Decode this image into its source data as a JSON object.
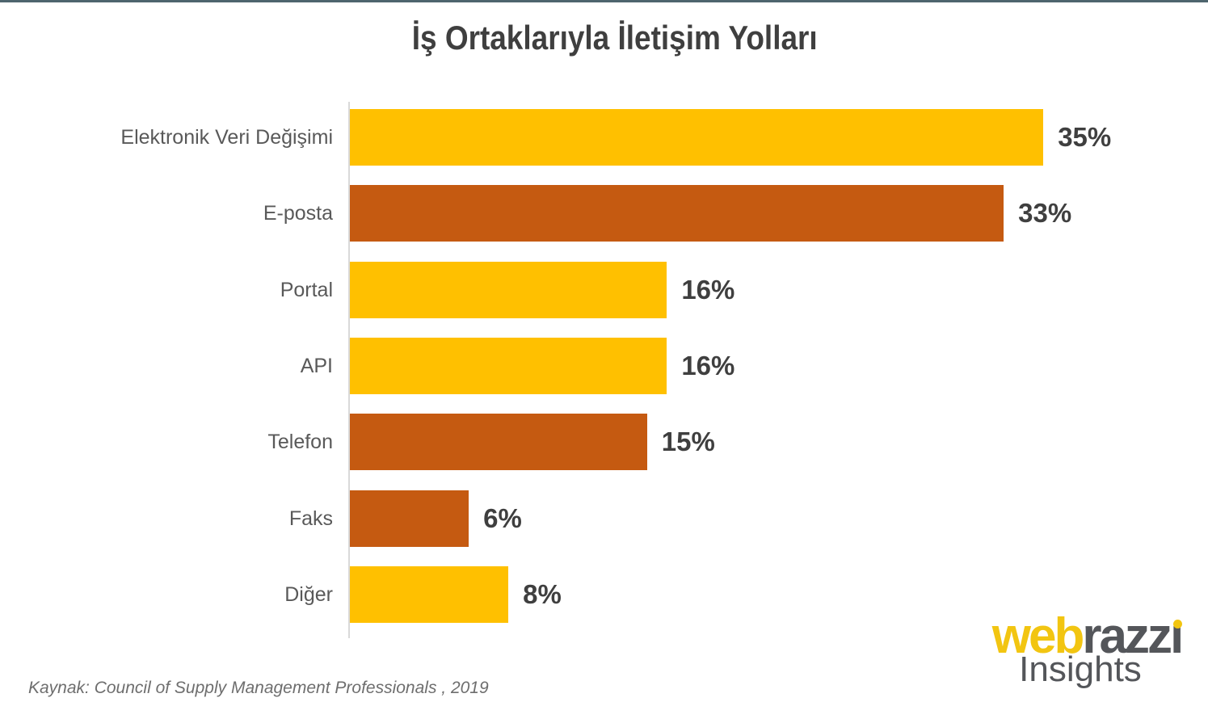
{
  "top_bar_color": "#4e656e",
  "title": "İş Ortaklarıyla İletişim Yolları",
  "chart_data": {
    "type": "bar",
    "orientation": "horizontal",
    "title": "İş Ortaklarıyla İletişim Yolları",
    "categories": [
      "Elektronik Veri Değişimi",
      "E-posta",
      "Portal",
      "API",
      "Telefon",
      "Faks",
      "Diğer"
    ],
    "values": [
      35,
      33,
      16,
      16,
      15,
      6,
      8
    ],
    "value_labels": [
      "35%",
      "33%",
      "16%",
      "16%",
      "15%",
      "6%",
      "8%"
    ],
    "bar_colors": [
      "#FFC000",
      "#C55A11",
      "#FFC000",
      "#FFC000",
      "#C55A11",
      "#C55A11",
      "#FFC000"
    ],
    "xlim": [
      0,
      35
    ],
    "grid": false,
    "legend": false
  },
  "source_note": "Kaynak: Council of Supply Management Professionals , 2019",
  "logo": {
    "part1": "web",
    "part2": "razzi",
    "subtitle": "Insights",
    "part1_color": "#F2C511",
    "part2_color": "#54565A"
  }
}
